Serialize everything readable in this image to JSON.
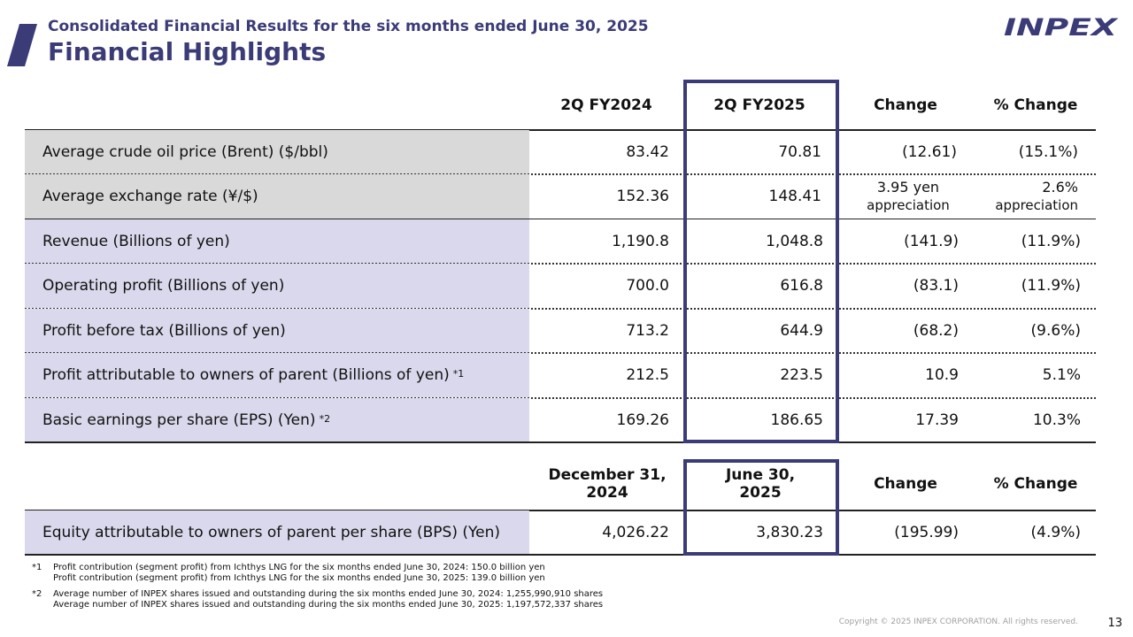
{
  "header": {
    "subtitle": "Consolidated Financial Results for the six months ended June 30, 2025",
    "title": "Financial Highlights",
    "logo_text": "INPEX",
    "brand_color": "#3b3b78"
  },
  "table1": {
    "columns": [
      "2Q FY2024",
      "2Q FY2025",
      "Change",
      "% Change"
    ],
    "rows": [
      {
        "label": "Average crude oil price (Brent) ($/bbl)",
        "note": "",
        "v2024": "83.42",
        "v2025": "70.81",
        "change": "(12.61)",
        "pct": "(15.1%)"
      },
      {
        "label": "Average exchange rate (¥/$)",
        "note": "",
        "v2024": "152.36",
        "v2025": "148.41",
        "change": "3.95 yen",
        "change_sub": "appreciation",
        "pct": "2.6%",
        "pct_sub": "appreciation"
      },
      {
        "label": "Revenue (Billions of yen)",
        "note": "",
        "v2024": "1,190.8",
        "v2025": "1,048.8",
        "change": "(141.9)",
        "pct": "(11.9%)"
      },
      {
        "label": "Operating profit (Billions of yen)",
        "note": "",
        "v2024": "700.0",
        "v2025": "616.8",
        "change": "(83.1)",
        "pct": "(11.9%)"
      },
      {
        "label": "Profit before tax (Billions of yen)",
        "note": "",
        "v2024": "713.2",
        "v2025": "644.9",
        "change": "(68.2)",
        "pct": "(9.6%)"
      },
      {
        "label": "Profit attributable to owners of parent (Billions of yen)",
        "note": "*1",
        "v2024": "212.5",
        "v2025": "223.5",
        "change": "10.9",
        "pct": "5.1%"
      },
      {
        "label": "Basic earnings per share (EPS) (Yen)",
        "note": "*2",
        "v2024": "169.26",
        "v2025": "186.65",
        "change": "17.39",
        "pct": "10.3%"
      }
    ]
  },
  "table2": {
    "col1_line1": "December 31,",
    "col1_line2": "2024",
    "col2_line1": "June 30,",
    "col2_line2": "2025",
    "col3": "Change",
    "col4": "% Change",
    "row": {
      "label": "Equity attributable to owners of parent per share (BPS) (Yen)",
      "v1": "4,026.22",
      "v2": "3,830.23",
      "change": "(195.99)",
      "pct": "(4.9%)"
    }
  },
  "footnotes": [
    {
      "mark": "*1",
      "lines": [
        "Profit contribution (segment profit) from Ichthys LNG for the six months ended June 30, 2024: 150.0 billion yen",
        "Profit contribution (segment profit) from Ichthys LNG for the six months ended June 30, 2025: 139.0 billion yen"
      ]
    },
    {
      "mark": "*2",
      "lines": [
        "Average number of INPEX shares issued and outstanding during the six months ended June 30, 2024: 1,255,990,910 shares",
        "Average number of INPEX shares issued and outstanding during the six months ended June 30, 2025: 1,197,572,337 shares"
      ]
    }
  ],
  "footer": {
    "copyright": "Copyright © 2025 INPEX CORPORATION. All rights reserved.",
    "page_number": "13"
  }
}
